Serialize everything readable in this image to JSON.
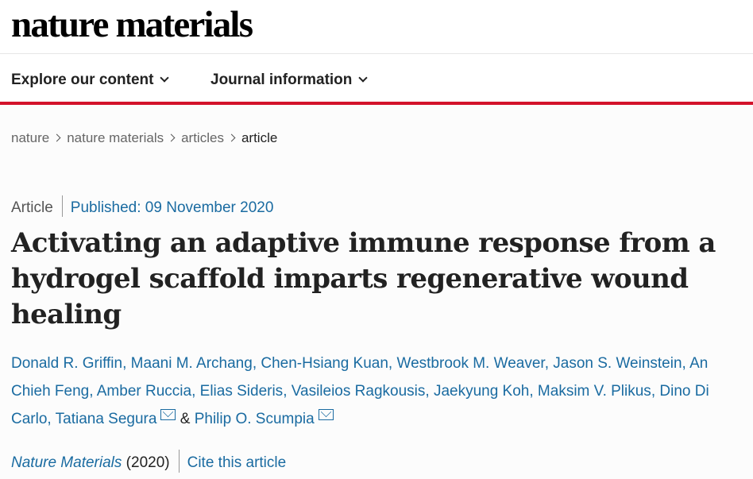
{
  "site": {
    "logo": "nature materials"
  },
  "nav": [
    {
      "label": "Explore our content"
    },
    {
      "label": "Journal information"
    }
  ],
  "breadcrumb": [
    "nature",
    "nature materials",
    "articles",
    "article"
  ],
  "article": {
    "type": "Article",
    "published": "Published: 09 November 2020",
    "title": "Activating an adaptive immune response from a hydrogel scaffold imparts regenerative wound healing",
    "authors": [
      "Donald R. Griffin",
      "Maani M. Archang",
      "Chen-Hsiang Kuan",
      "Westbrook M. Weaver",
      "Jason S. Weinstein",
      "An Chieh Feng",
      "Amber Ruccia",
      "Elias Sideris",
      "Vasileios Ragkousis",
      "Jaekyung Koh",
      "Maksim V. Plikus",
      "Dino Di Carlo",
      "Tatiana Segura",
      "Philip O. Scumpia"
    ],
    "amp": "&",
    "journal": "Nature Materials",
    "year": "(2020)",
    "cite_label": "Cite this article"
  },
  "colors": {
    "accent_red": "#d3122a",
    "link_blue": "#1a6ba1"
  },
  "icons": [
    "chevron-down-icon",
    "chevron-right-icon",
    "mail-icon"
  ]
}
